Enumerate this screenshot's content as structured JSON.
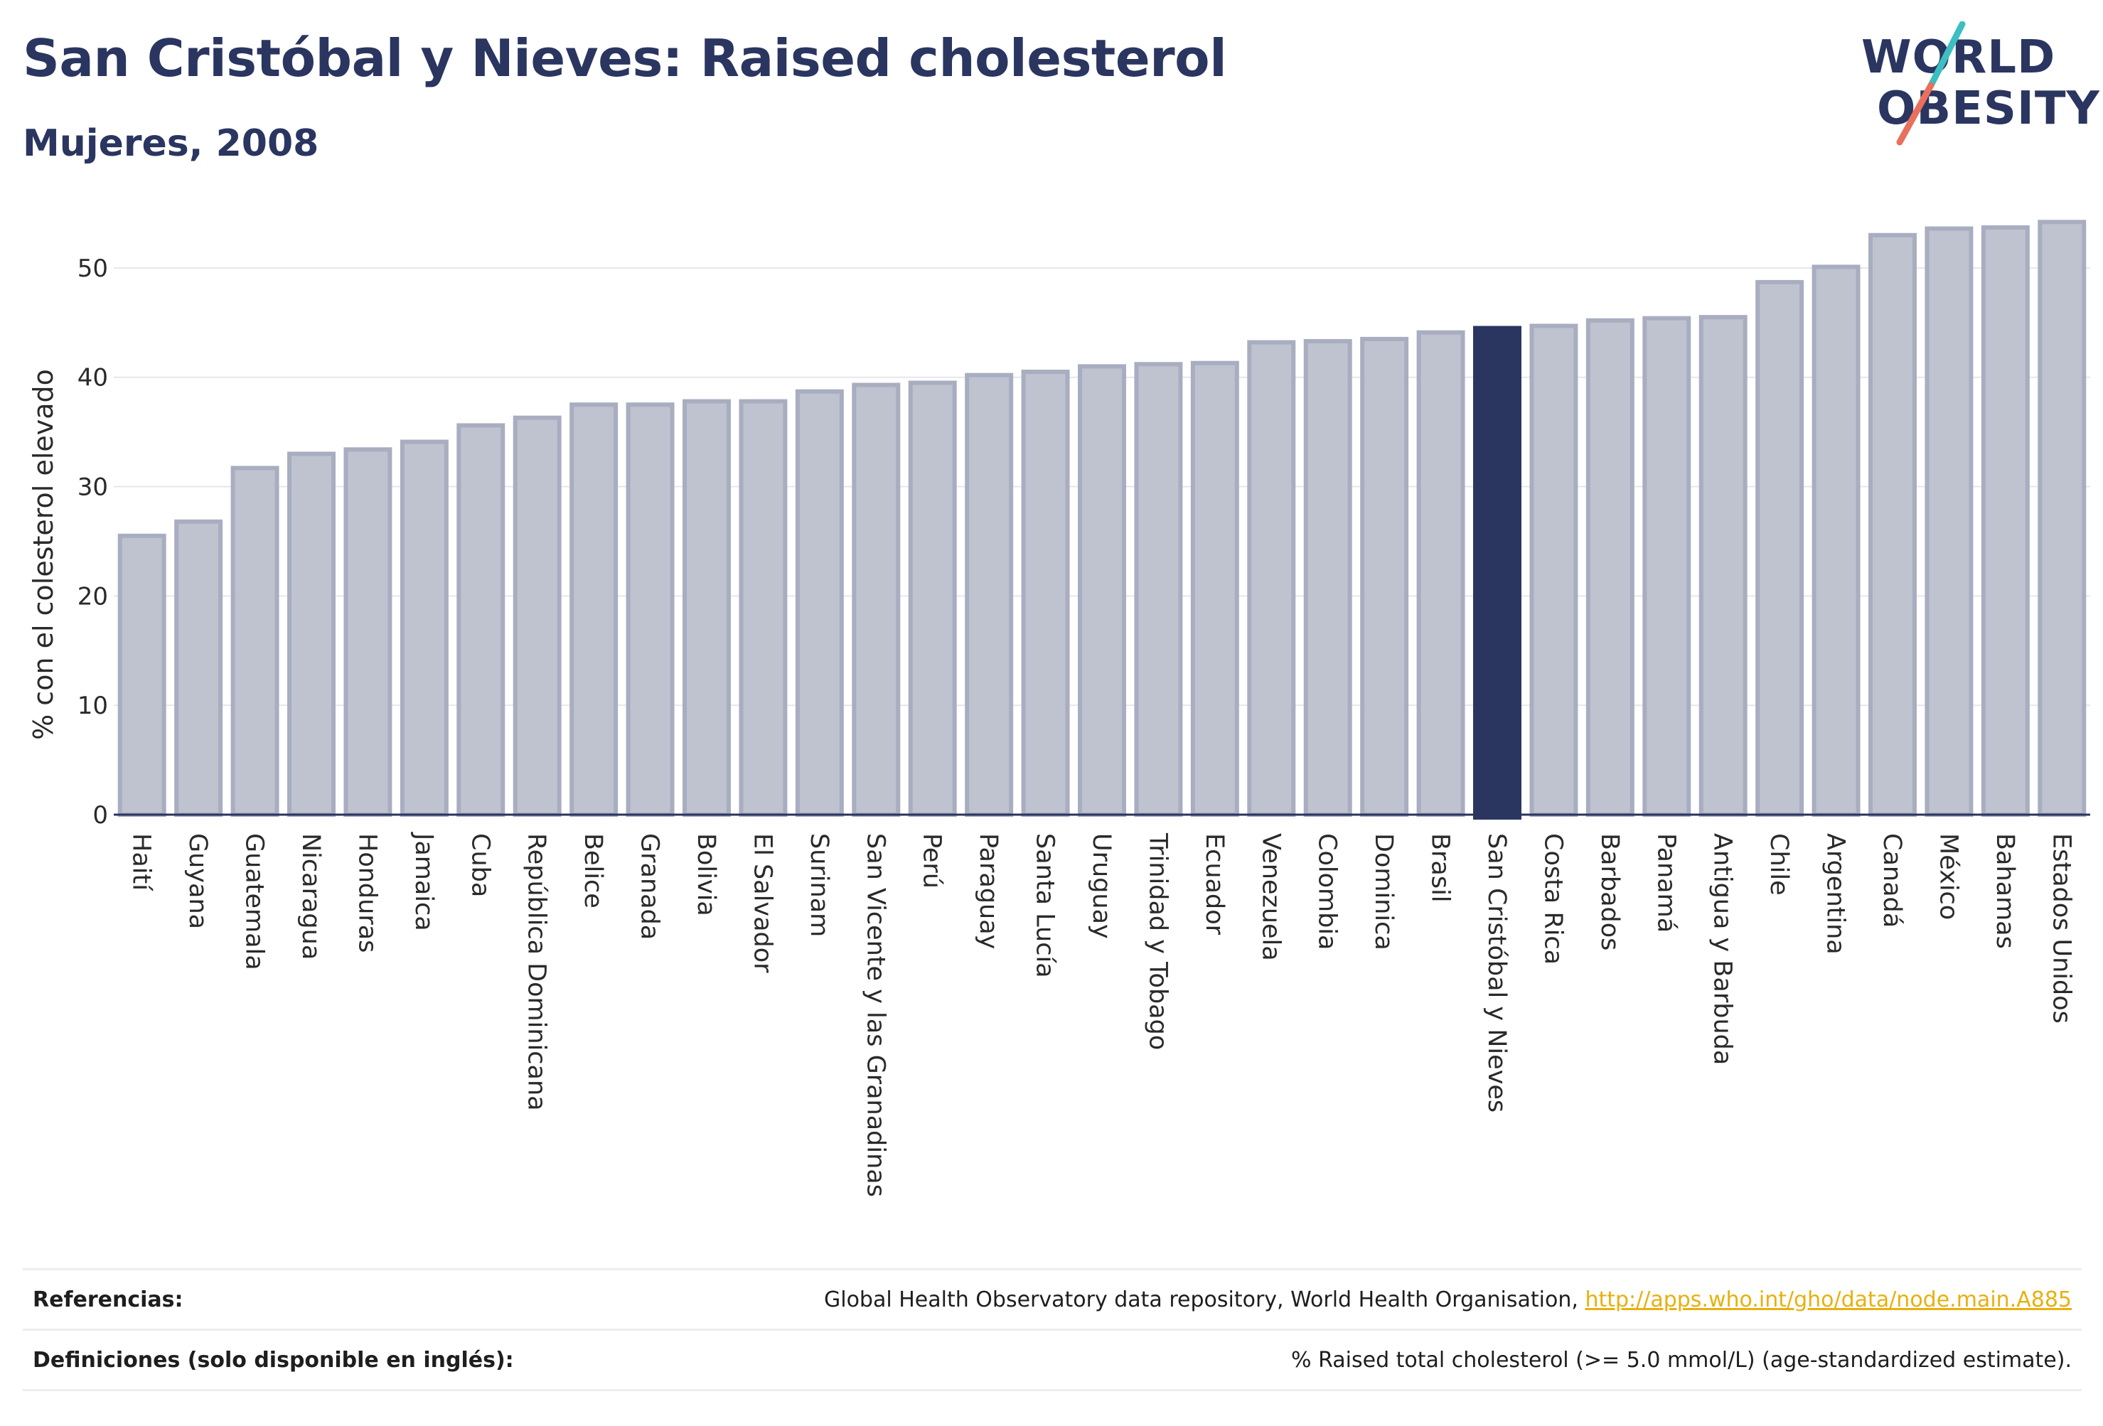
{
  "header": {
    "title": "San Cristóbal y Nieves: Raised cholesterol",
    "subtitle": "Mujeres, 2008"
  },
  "logo": {
    "line1": "WORLD",
    "line2": "OBESITY",
    "colors": {
      "text": "#2a3560",
      "slash_teal": "#3cbfc0",
      "slash_coral": "#e8705c"
    }
  },
  "colors": {
    "bar": "#bfc2cf",
    "bar_border": "#a8adc0",
    "highlight": "#2a3560",
    "grid": "#e6e7ee",
    "axis": "#2a3560"
  },
  "chart_data": {
    "type": "bar",
    "title": "San Cristóbal y Nieves: Raised cholesterol",
    "subtitle": "Mujeres, 2008",
    "ylabel": "% con el colesterol elevado",
    "xlabel": "",
    "ylim": [
      0,
      55
    ],
    "yticks": [
      0,
      10,
      20,
      30,
      40,
      50
    ],
    "grid": true,
    "highlight": "San Cristóbal y Nieves",
    "categories": [
      "Haití",
      "Guyana",
      "Guatemala",
      "Nicaragua",
      "Honduras",
      "Jamaica",
      "Cuba",
      "República Dominicana",
      "Belice",
      "Granada",
      "Bolivia",
      "El Salvador",
      "Surinam",
      "San Vicente y las Granadinas",
      "Perú",
      "Paraguay",
      "Santa Lucía",
      "Uruguay",
      "Trinidad y Tobago",
      "Ecuador",
      "Venezuela",
      "Colombia",
      "Dominica",
      "Brasil",
      "San Cristóbal y Nieves",
      "Costa Rica",
      "Barbados",
      "Panamá",
      "Antigua y Barbuda",
      "Chile",
      "Argentina",
      "Canadá",
      "México",
      "Bahamas",
      "Estados Unidos"
    ],
    "values": [
      25.5,
      26.8,
      31.7,
      33.0,
      33.4,
      34.1,
      35.6,
      36.3,
      37.5,
      37.5,
      37.8,
      37.8,
      38.7,
      39.3,
      39.5,
      40.2,
      40.5,
      41.0,
      41.2,
      41.3,
      43.2,
      43.3,
      43.5,
      44.1,
      44.5,
      44.7,
      45.2,
      45.4,
      45.5,
      48.7,
      50.1,
      53.0,
      53.6,
      53.7,
      54.2
    ]
  },
  "footer": {
    "references_label": "Referencias:",
    "references_text": "Global Health Observatory data repository, World Health Organisation,",
    "references_link": "http://apps.who.int/gho/data/node.main.A885",
    "definitions_label": "Definiciones (solo disponible en inglés):",
    "definitions_text": "% Raised total cholesterol (>= 5.0 mmol/L) (age-standardized estimate)."
  }
}
